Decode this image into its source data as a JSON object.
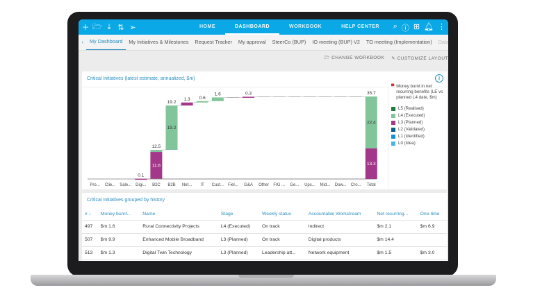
{
  "toolbar_icons": [
    "plus-icon",
    "folder-open-icon",
    "download-icon",
    "sort-icon",
    "send-icon"
  ],
  "nav": [
    "HOME",
    "DASHBOARD",
    "WORKBOOK",
    "HELP CENTER"
  ],
  "right_icons": [
    "search-icon",
    "help-icon",
    "network-icon",
    "bell-icon",
    "more-vertical-icon"
  ],
  "tabs": [
    "My Dashboard",
    "My Initiatives & Milestones",
    "Request Tracker",
    "My approval",
    "SteerCo (BUP)",
    "IO meeting (BUP) V2",
    "TO meeting (Implementation)",
    "Data"
  ],
  "actions": {
    "change_workbook": "CHANGE WORKBOOK",
    "customize_layout": "CUSTOMIZE LAYOUT"
  },
  "chart_panel": {
    "title": "Critical Initiatives (latest estimate, annualized, $m)"
  },
  "chart_data": {
    "type": "waterfall",
    "title": "Critical Initiatives (latest estimate, annualized, $m)",
    "categories": [
      "Pro...",
      "Clie...",
      "Sale...",
      "Digi...",
      "B2C",
      "B2B",
      "Net...",
      "IT",
      "Cust...",
      "Fiel...",
      "G&A",
      "Other",
      "FIG ...",
      "Ge...",
      "Ups...",
      "Mid...",
      "Dow...",
      "Cro...",
      "Total"
    ],
    "series": [
      {
        "name": "L4 (Executed)",
        "color": "#82c59a",
        "values": [
          0,
          0,
          0,
          0,
          0.9,
          19.2,
          0,
          0.6,
          1.6,
          0,
          0,
          0,
          0,
          0,
          0,
          0,
          0,
          0,
          22.4
        ]
      },
      {
        "name": "L3 (Planned)",
        "color": "#a3388b",
        "values": [
          0,
          0,
          0,
          0.1,
          11.6,
          0,
          1.3,
          0,
          0,
          0,
          0.3,
          0,
          0,
          0,
          0,
          0,
          0,
          0,
          13.3
        ]
      }
    ],
    "top_labels": [
      "",
      "",
      "",
      "0.1",
      "12.5",
      "19.2",
      "1.3",
      "0.6",
      "1.6",
      "",
      "0.3",
      "",
      "",
      "",
      "",
      "",
      "",
      "",
      "35.7"
    ],
    "segment_labels": {
      "B2C": {
        "L3 (Planned)": "11.6"
      },
      "B2B": {
        "L4 (Executed)": "19.2"
      },
      "Total": {
        "L4 (Executed)": "22.4",
        "L3 (Planned)": "13.3"
      }
    },
    "legend_title": "Money burnt in net recurring benefits (LE vs planned L4 date, $m)",
    "legend": [
      {
        "name": "L5 (Realised)",
        "color": "#1e7d3c"
      },
      {
        "name": "L4 (Executed)",
        "color": "#82c59a"
      },
      {
        "name": "L3 (Planned)",
        "color": "#a3388b"
      },
      {
        "name": "L2 (Validated)",
        "color": "#0a5e8c"
      },
      {
        "name": "L1 (Identified)",
        "color": "#1392d3"
      },
      {
        "name": "L0 (Idea)",
        "color": "#4ab5e3"
      }
    ],
    "legend_placement": "right",
    "grid": false
  },
  "table_panel": {
    "title": "Critical Initiatives grouped by history",
    "columns": [
      "# ↓",
      "Money burnt...",
      "Name",
      "Stage",
      "Weekly status",
      "Accountable Workstream",
      "Net recurring...",
      "One-time"
    ],
    "rows": [
      [
        "497",
        "$m 1.6",
        "Rural Connectivity Projects",
        "L4 (Executed)",
        "On track",
        "Indirect",
        "$m 2.1",
        "$m 6.9"
      ],
      [
        "507",
        "$m 9.9",
        "Enhanced Mobile Broadband",
        "L3 (Planned)",
        "On track",
        "Digital products",
        "$m 14.4",
        ""
      ],
      [
        "513",
        "$m 1.3",
        "Digital Twin Technology",
        "L3 (Planned)",
        "Leadership att...",
        "Network equipment",
        "$m 1.5",
        "$m 3.0"
      ]
    ]
  }
}
